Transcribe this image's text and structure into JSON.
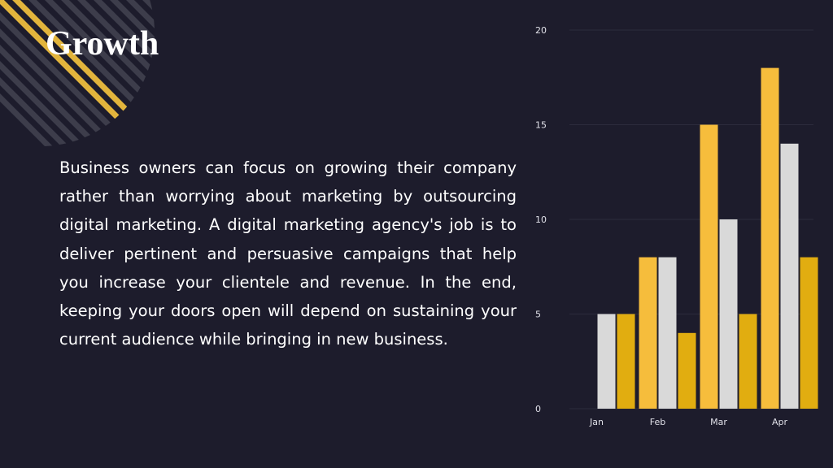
{
  "slide": {
    "title": "Growth",
    "body": "Business owners can focus on growing their company rather than worrying about marketing by outsourcing digital marketing. A digital marketing agency's job is to deliver pertinent and persuasive campaigns that help you increase your clientele and revenue. In the end, keeping your doors open will depend on sustaining your current audience while bringing in new business.",
    "colors": {
      "background": "#1d1c2c",
      "accent": "#f4ba3a",
      "decor_stripe": "#3d3d4b",
      "decor_accent": "#e2b43c"
    }
  },
  "chart_data": {
    "type": "bar",
    "categories": [
      "Jan",
      "Feb",
      "Mar",
      "Apr"
    ],
    "series": [
      {
        "values": [
          0,
          8,
          15,
          18
        ],
        "color": "#f6bd3c"
      },
      {
        "values": [
          5,
          8,
          10,
          14
        ],
        "color": "#d9d9d9"
      },
      {
        "values": [
          5,
          4,
          5,
          8
        ],
        "color": "#e1ad10"
      }
    ],
    "y_ticks": [
      "0",
      "5",
      "10",
      "15",
      "20"
    ],
    "ylim": [
      0,
      20
    ],
    "grid": true,
    "legend": "none",
    "title": "",
    "xlabel": "",
    "ylabel": ""
  }
}
